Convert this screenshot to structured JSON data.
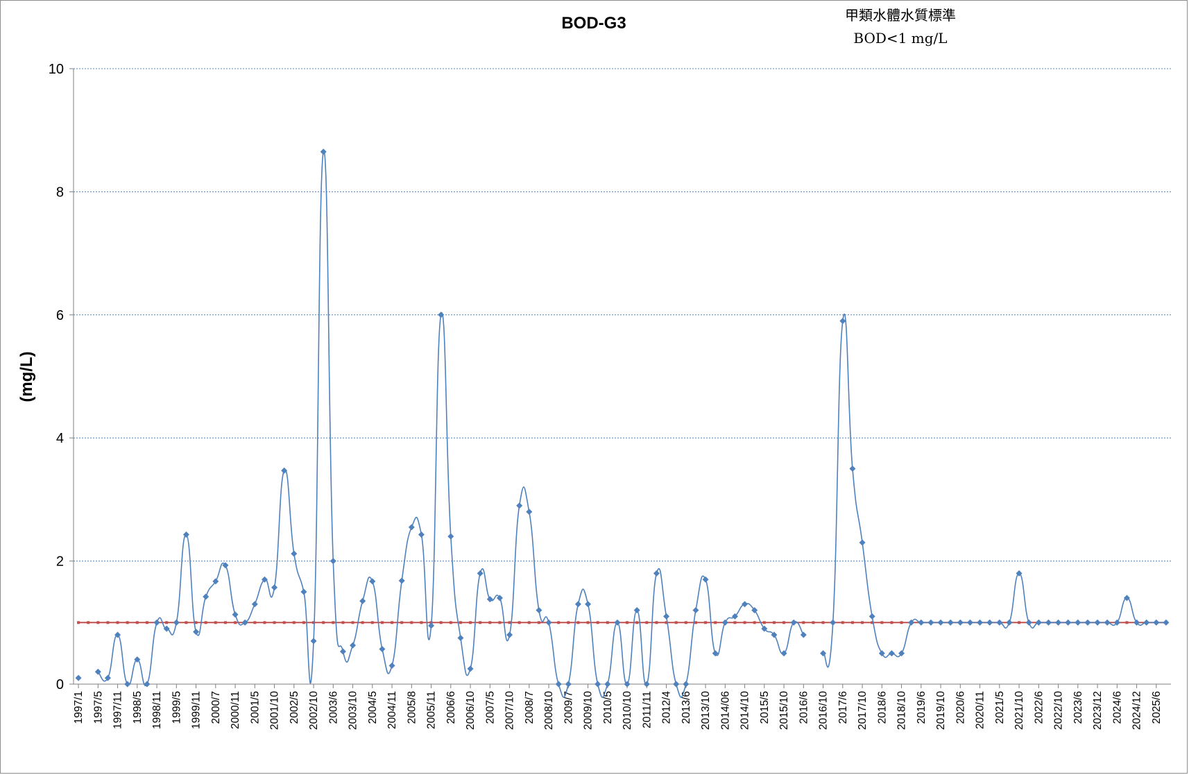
{
  "chart_data": {
    "type": "line",
    "title": "BOD-G3",
    "note_line1": "甲類水體水質標準",
    "note_line2": "BOD<1 mg/L",
    "ylabel": "(mg/L)",
    "xlabel": "",
    "ylim": [
      0,
      10
    ],
    "yticks": [
      0,
      2,
      4,
      6,
      8,
      10
    ],
    "grid": true,
    "x_tick_labels": [
      "1997/1",
      "1997/5",
      "1997/11",
      "1998/5",
      "1998/11",
      "1999/5",
      "1999/11",
      "2000/7",
      "2000/11",
      "2001/5",
      "2001/10",
      "2002/5",
      "2002/10",
      "2003/6",
      "2003/10",
      "2004/5",
      "2004/11",
      "2005/8",
      "2005/11",
      "2006/6",
      "2006/10",
      "2007/5",
      "2007/10",
      "2008/7",
      "2008/10",
      "2009/7",
      "2009/10",
      "2010/5",
      "2010/10",
      "2011/11",
      "2012/4",
      "2013/6",
      "2013/10",
      "2014/06",
      "2014/10",
      "2015/5",
      "2015/10",
      "2016/6",
      "2016/10",
      "2017/6",
      "2017/10",
      "2018/6",
      "2018/10",
      "2019/6",
      "2019/10",
      "2020/6",
      "2020/11",
      "2021/5",
      "2021/10",
      "2022/6",
      "2022/10",
      "2023/6",
      "2023/12",
      "2024/6",
      "2024/12",
      "2025/6"
    ],
    "series": [
      {
        "name": "BOD",
        "color": "#4f81bd",
        "segments": [
          [
            [
              0,
              0.1
            ],
            [
              2,
              0.2
            ],
            [
              3,
              0.1
            ],
            [
              4,
              0.8
            ],
            [
              5,
              0.0
            ],
            [
              6,
              0.4
            ],
            [
              7,
              0.0
            ],
            [
              8,
              1.0
            ],
            [
              9,
              0.9
            ],
            [
              10,
              1.0
            ],
            [
              11,
              2.43
            ],
            [
              12,
              0.85
            ],
            [
              13,
              1.42
            ],
            [
              14,
              1.67
            ],
            [
              15,
              1.93
            ],
            [
              16,
              1.13
            ],
            [
              17,
              1.0
            ],
            [
              18,
              1.3
            ],
            [
              19,
              1.7
            ],
            [
              20,
              1.57
            ],
            [
              21,
              3.47
            ],
            [
              22,
              2.12
            ],
            [
              23,
              1.5
            ],
            [
              24,
              0.7
            ],
            [
              25,
              8.65
            ],
            [
              26,
              2.0
            ],
            [
              27,
              0.53
            ],
            [
              28,
              0.63
            ],
            [
              29,
              1.35
            ],
            [
              30,
              1.67
            ],
            [
              31,
              0.57
            ],
            [
              32,
              0.3
            ],
            [
              33,
              1.68
            ],
            [
              34,
              2.55
            ],
            [
              35,
              2.43
            ],
            [
              36,
              0.95
            ],
            [
              37,
              6.0
            ],
            [
              38,
              2.4
            ],
            [
              39,
              0.75
            ],
            [
              40,
              0.25
            ],
            [
              41,
              1.8
            ],
            [
              42,
              1.38
            ],
            [
              43,
              1.4
            ],
            [
              44,
              0.8
            ],
            [
              45,
              2.9
            ],
            [
              46,
              2.8
            ],
            [
              47,
              1.2
            ],
            [
              48,
              1.0
            ],
            [
              49,
              0.0
            ],
            [
              50,
              0.0
            ],
            [
              51,
              1.3
            ],
            [
              52,
              1.3
            ],
            [
              53,
              0.0
            ],
            [
              54,
              0.0
            ],
            [
              55,
              1.0
            ],
            [
              56,
              0.0
            ],
            [
              57,
              1.2
            ],
            [
              58,
              0.0
            ],
            [
              59,
              1.8
            ],
            [
              60,
              1.1
            ],
            [
              61,
              0.0
            ],
            [
              62,
              0.0
            ],
            [
              63,
              1.2
            ],
            [
              64,
              1.7
            ],
            [
              65,
              0.5
            ],
            [
              66,
              1.0
            ],
            [
              67,
              1.1
            ],
            [
              68,
              1.3
            ],
            [
              69,
              1.2
            ],
            [
              70,
              0.9
            ],
            [
              71,
              0.8
            ],
            [
              72,
              0.5
            ],
            [
              73,
              1.0
            ],
            [
              74,
              0.8
            ]
          ],
          [
            [
              76,
              0.5
            ],
            [
              77,
              1.0
            ],
            [
              78,
              5.9
            ],
            [
              79,
              3.5
            ],
            [
              80,
              2.3
            ],
            [
              81,
              1.1
            ],
            [
              82,
              0.5
            ],
            [
              83,
              0.5
            ],
            [
              84,
              0.5
            ],
            [
              85,
              1.0
            ],
            [
              86,
              1.0
            ],
            [
              87,
              1.0
            ],
            [
              88,
              1.0
            ],
            [
              89,
              1.0
            ],
            [
              90,
              1.0
            ],
            [
              91,
              1.0
            ],
            [
              92,
              1.0
            ],
            [
              93,
              1.0
            ],
            [
              94,
              1.0
            ],
            [
              95,
              1.0
            ],
            [
              96,
              1.8
            ],
            [
              97,
              1.0
            ],
            [
              98,
              1.0
            ],
            [
              99,
              1.0
            ],
            [
              100,
              1.0
            ],
            [
              101,
              1.0
            ],
            [
              102,
              1.0
            ],
            [
              103,
              1.0
            ],
            [
              104,
              1.0
            ],
            [
              105,
              1.0
            ],
            [
              106,
              1.0
            ],
            [
              107,
              1.4
            ],
            [
              108,
              1.0
            ],
            [
              109,
              1.0
            ],
            [
              110,
              1.0
            ],
            [
              111,
              1.0
            ]
          ]
        ]
      },
      {
        "name": "甲類水體水質標準",
        "color": "#c0504d",
        "value": 1.0,
        "n_points": 112
      }
    ]
  }
}
